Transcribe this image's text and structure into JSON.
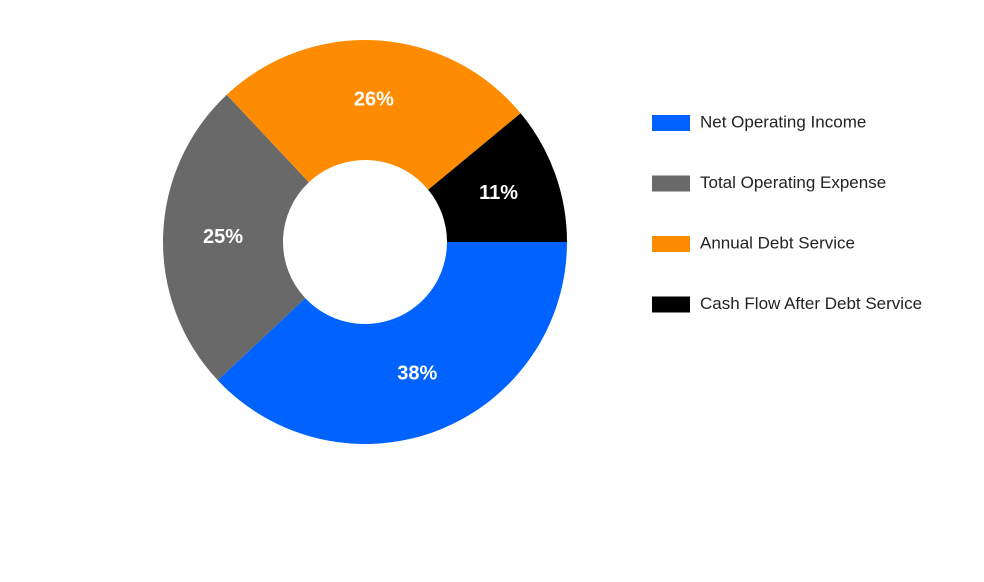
{
  "chart_data": {
    "type": "donut",
    "categories": [
      "Net Operating Income",
      "Total Operating Expense",
      "Annual Debt Service",
      "Cash Flow After Debt Service"
    ],
    "values": [
      38,
      25,
      26,
      11
    ],
    "value_labels": [
      "38%",
      "25%",
      "26%",
      "11%"
    ],
    "colors": [
      "#0062ff",
      "#696969",
      "#ff8c00",
      "#000000"
    ],
    "legend": "right"
  }
}
